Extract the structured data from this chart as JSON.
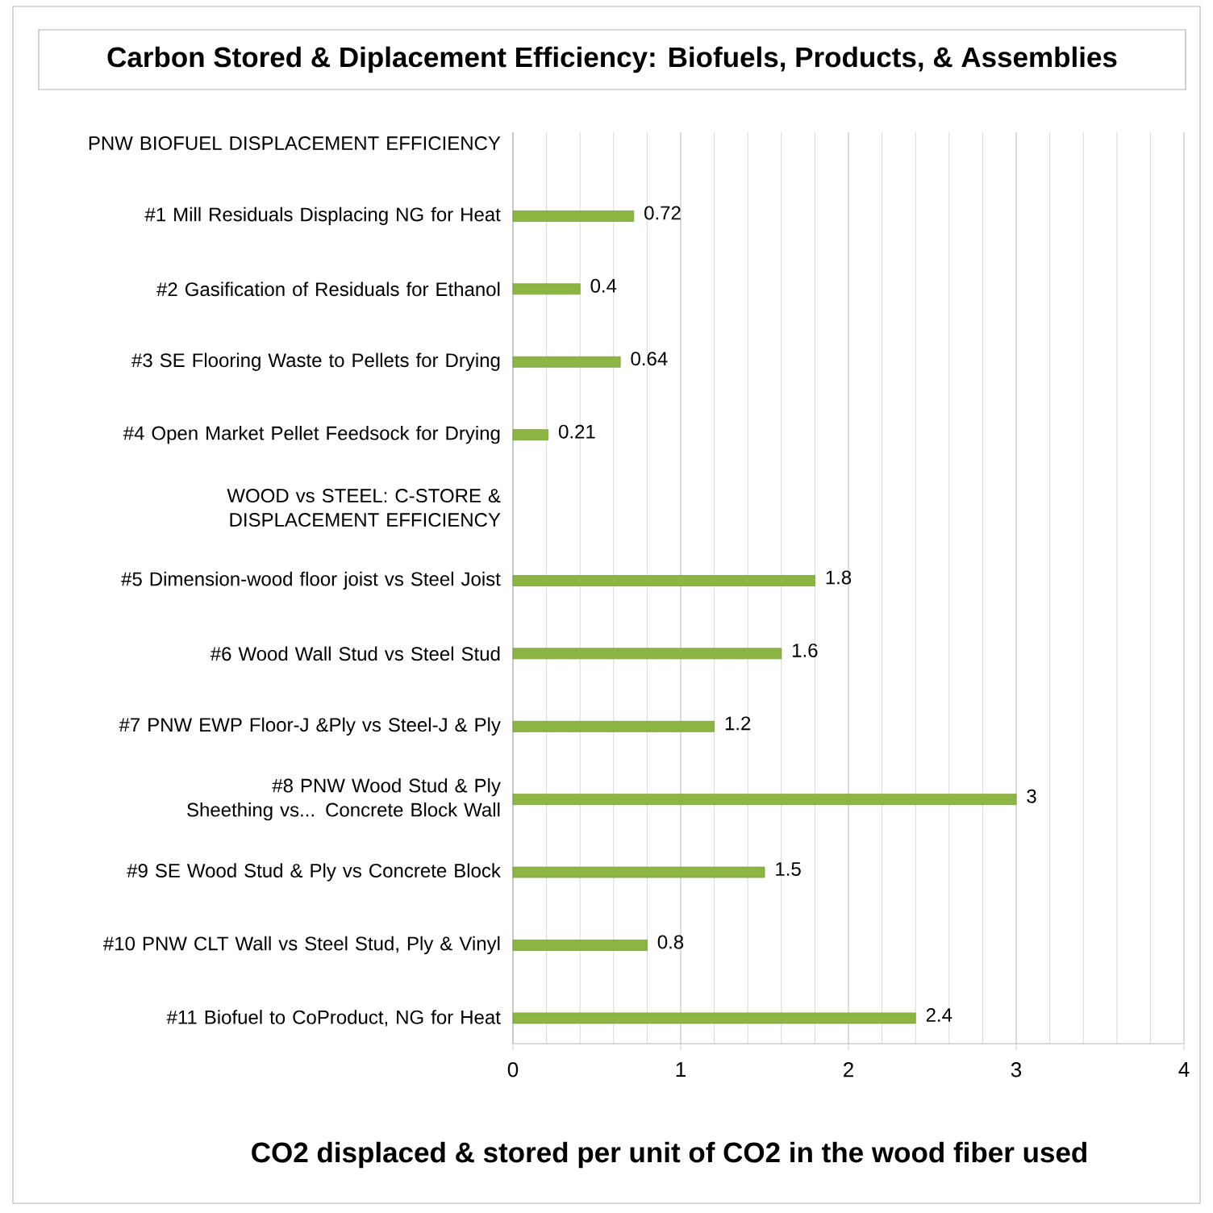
{
  "chart_data": {
    "type": "bar",
    "orientation": "horizontal",
    "title": "Carbon Stored & Diplacement Efficiency: Biofuels, Products, & Assemblies",
    "xlabel": "CO2  displaced & stored per unit of CO2 in the  wood fiber used",
    "categories": [
      "PNW BIOFUEL DISPLACEMENT EFFICIENCY",
      "#1 Mill Residuals Displacing NG for Heat",
      "#2  Gasification of Residuals for Ethanol",
      "#3 SE Flooring Waste to Pellets for Drying",
      "#4 Open Market Pellet Feedsock for Drying",
      "WOOD vs STEEL: C-STORE & DISPLACEMENT  EFFICIENCY",
      "#5 Dimension-wood floor joist vs Steel Joist",
      "#6 Wood Wall Stud vs Steel Stud",
      "#7 PNW EWP Floor-J &Ply  vs Steel-J & Ply",
      "#8 PNW Wood Stud & Ply Sheething  vs... Concrete Block Wall",
      "#9 SE Wood Stud & Ply vs Concrete Block",
      "#10 PNW CLT Wall vs Steel Stud, Ply & Vinyl",
      "#11 Biofuel to CoProduct, NG for Heat"
    ],
    "values": [
      null,
      0.72,
      0.4,
      0.64,
      0.21,
      null,
      1.8,
      1.6,
      1.2,
      3,
      1.5,
      0.8,
      2.4
    ],
    "value_labels": [
      null,
      "0.72",
      "0.4",
      "0.64",
      "0.21",
      null,
      "1.8",
      "1.6",
      "1.2",
      "3",
      "1.5",
      "0.8",
      "2.4"
    ],
    "color": "#8db544",
    "xlim": [
      0,
      4
    ],
    "xticks": [
      0,
      1,
      2,
      3,
      4
    ],
    "grid": "x"
  }
}
